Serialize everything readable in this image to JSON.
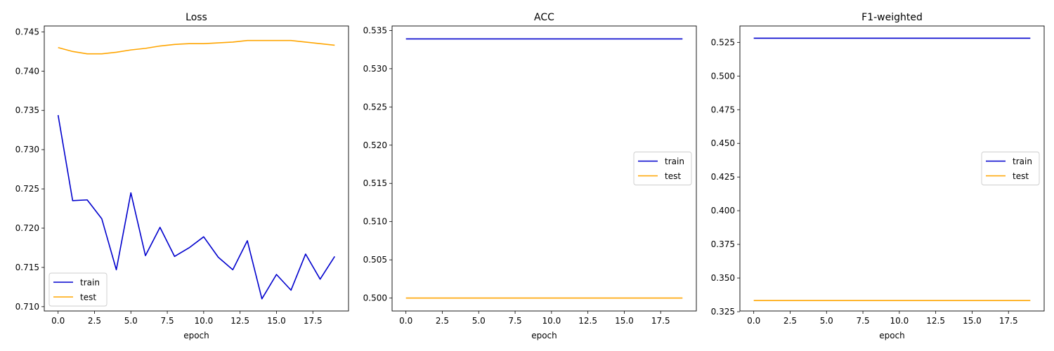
{
  "colors": {
    "train": "#0000cd",
    "test": "#ffa500"
  },
  "chart_data": [
    {
      "type": "line",
      "title": "Loss",
      "xlabel": "epoch",
      "ylabel": "",
      "xlim": [
        -0.95,
        19.95
      ],
      "ylim": [
        0.70945,
        0.74575
      ],
      "xticks": [
        0,
        2.5,
        5,
        7.5,
        10,
        12.5,
        15,
        17.5
      ],
      "xtick_labels": [
        "0.0",
        "2.5",
        "5.0",
        "7.5",
        "10.0",
        "12.5",
        "15.0",
        "17.5"
      ],
      "yticks": [
        0.71,
        0.715,
        0.72,
        0.725,
        0.73,
        0.735,
        0.74,
        0.745
      ],
      "ytick_labels": [
        "0.710",
        "0.715",
        "0.720",
        "0.725",
        "0.730",
        "0.735",
        "0.740",
        "0.745"
      ],
      "legend": "lower-left",
      "x": [
        0,
        1,
        2,
        3,
        4,
        5,
        6,
        7,
        8,
        9,
        10,
        11,
        12,
        13,
        14,
        15,
        16,
        17,
        18,
        19
      ],
      "series": [
        {
          "name": "train",
          "color": "#0000cd",
          "values": [
            0.7344,
            0.7235,
            0.7236,
            0.7212,
            0.7147,
            0.7245,
            0.7165,
            0.7201,
            0.7164,
            0.7175,
            0.7189,
            0.7163,
            0.7147,
            0.7184,
            0.711,
            0.7141,
            0.7121,
            0.7167,
            0.7135,
            0.7164
          ]
        },
        {
          "name": "test",
          "color": "#ffa500",
          "values": [
            0.743,
            0.7425,
            0.7422,
            0.7422,
            0.7424,
            0.7427,
            0.7429,
            0.7432,
            0.7434,
            0.7435,
            0.7435,
            0.7436,
            0.7437,
            0.7439,
            0.7439,
            0.7439,
            0.7439,
            0.7437,
            0.7435,
            0.7433
          ]
        }
      ]
    },
    {
      "type": "line",
      "title": "ACC",
      "xlabel": "epoch",
      "ylabel": "",
      "xlim": [
        -0.95,
        19.95
      ],
      "ylim": [
        0.49831,
        0.53559
      ],
      "xticks": [
        0,
        2.5,
        5,
        7.5,
        10,
        12.5,
        15,
        17.5
      ],
      "xtick_labels": [
        "0.0",
        "2.5",
        "5.0",
        "7.5",
        "10.0",
        "12.5",
        "15.0",
        "17.5"
      ],
      "yticks": [
        0.5,
        0.505,
        0.51,
        0.515,
        0.52,
        0.525,
        0.53,
        0.535
      ],
      "ytick_labels": [
        "0.500",
        "0.505",
        "0.510",
        "0.515",
        "0.520",
        "0.525",
        "0.530",
        "0.535"
      ],
      "legend": "center-right",
      "x": [
        0,
        1,
        2,
        3,
        4,
        5,
        6,
        7,
        8,
        9,
        10,
        11,
        12,
        13,
        14,
        15,
        16,
        17,
        18,
        19
      ],
      "series": [
        {
          "name": "train",
          "color": "#0000cd",
          "values": [
            0.5339,
            0.5339,
            0.5339,
            0.5339,
            0.5339,
            0.5339,
            0.5339,
            0.5339,
            0.5339,
            0.5339,
            0.5339,
            0.5339,
            0.5339,
            0.5339,
            0.5339,
            0.5339,
            0.5339,
            0.5339,
            0.5339,
            0.5339
          ]
        },
        {
          "name": "test",
          "color": "#ffa500",
          "values": [
            0.5,
            0.5,
            0.5,
            0.5,
            0.5,
            0.5,
            0.5,
            0.5,
            0.5,
            0.5,
            0.5,
            0.5,
            0.5,
            0.5,
            0.5,
            0.5,
            0.5,
            0.5,
            0.5,
            0.5
          ]
        }
      ]
    },
    {
      "type": "line",
      "title": "F1-weighted",
      "xlabel": "epoch",
      "ylabel": "",
      "xlim": [
        -0.95,
        19.95
      ],
      "ylim": [
        0.32553,
        0.53717
      ],
      "xticks": [
        0,
        2.5,
        5,
        7.5,
        10,
        12.5,
        15,
        17.5
      ],
      "xtick_labels": [
        "0.0",
        "2.5",
        "5.0",
        "7.5",
        "10.0",
        "12.5",
        "15.0",
        "17.5"
      ],
      "yticks": [
        0.325,
        0.35,
        0.375,
        0.4,
        0.425,
        0.45,
        0.475,
        0.5,
        0.525
      ],
      "ytick_labels": [
        "0.325",
        "0.350",
        "0.375",
        "0.400",
        "0.425",
        "0.450",
        "0.475",
        "0.500",
        "0.525"
      ],
      "legend": "center-right",
      "x": [
        0,
        1,
        2,
        3,
        4,
        5,
        6,
        7,
        8,
        9,
        10,
        11,
        12,
        13,
        14,
        15,
        16,
        17,
        18,
        19
      ],
      "series": [
        {
          "name": "train",
          "color": "#0000cd",
          "values": [
            0.5281,
            0.5281,
            0.5281,
            0.5281,
            0.5281,
            0.5281,
            0.5281,
            0.5281,
            0.5281,
            0.5281,
            0.5281,
            0.5281,
            0.5281,
            0.5281,
            0.5281,
            0.5281,
            0.5281,
            0.5281,
            0.5281,
            0.5281
          ]
        },
        {
          "name": "test",
          "color": "#ffa500",
          "values": [
            0.3333,
            0.3333,
            0.3333,
            0.3333,
            0.3333,
            0.3333,
            0.3333,
            0.3333,
            0.3333,
            0.3333,
            0.3333,
            0.3333,
            0.3333,
            0.3333,
            0.3333,
            0.3333,
            0.3333,
            0.3333,
            0.3333,
            0.3333
          ]
        }
      ]
    }
  ]
}
